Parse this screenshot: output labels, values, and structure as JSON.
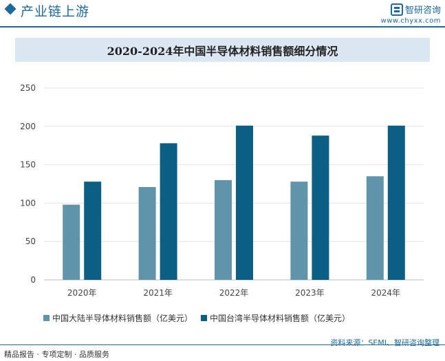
{
  "header": {
    "title": "产业链上游",
    "brand_name": "智研咨询",
    "brand_url": "www.chyxx.com"
  },
  "footer": {
    "left": "精品报告 · 专项定制 · 品质服务",
    "source": "资料来源：SEMI、智研咨询整理"
  },
  "colors": {
    "accent": "#1b6a9b",
    "series1": "#5f94ab",
    "series2": "#0b5f84"
  },
  "chart_data": {
    "type": "bar",
    "title": "2020-2024年中国半导体材料销售额细分情况",
    "categories": [
      "2020年",
      "2021年",
      "2022年",
      "2023年",
      "2024年"
    ],
    "series": [
      {
        "name": "中国大陆半导体材料销售额（亿美元）",
        "values": [
          98,
          121,
          130,
          128,
          135
        ]
      },
      {
        "name": "中国台湾半导体材料销售额（亿美元）",
        "values": [
          128,
          178,
          201,
          188,
          201
        ]
      }
    ],
    "ylim": [
      0,
      250
    ],
    "yticks": [
      0,
      50,
      100,
      150,
      200,
      250
    ],
    "grid": true,
    "legend": "bottom"
  }
}
